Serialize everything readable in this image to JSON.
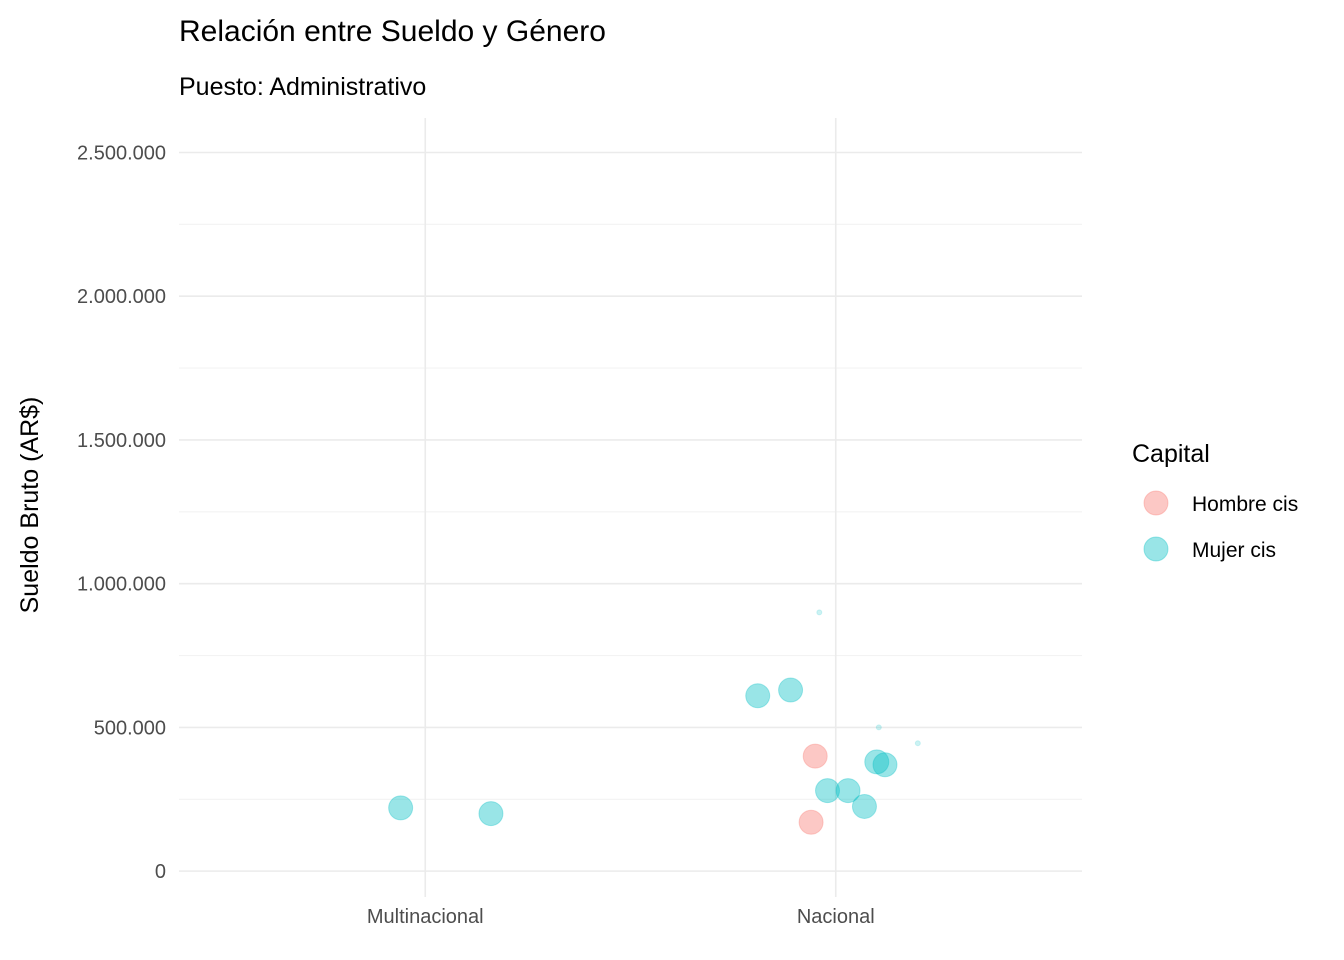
{
  "chart_data": {
    "type": "scatter",
    "title": "Relación entre Sueldo y Género",
    "subtitle": "Puesto: Administrativo",
    "xlabel": "",
    "ylabel": "Sueldo Bruto (AR$)",
    "categories": [
      "Multinacional",
      "Nacional"
    ],
    "ylim": [
      -90000,
      2620000
    ],
    "y_ticks": [
      0,
      500000,
      1000000,
      1500000,
      2000000,
      2500000
    ],
    "y_tick_labels": [
      "0",
      "500.000",
      "1.000.000",
      "1.500.000",
      "2.000.000",
      "2.500.000"
    ],
    "grid": true,
    "legend": {
      "title": "Capital",
      "position": "right",
      "entries": [
        {
          "label": "Hombre cis",
          "color": "#F8766D"
        },
        {
          "label": "Mujer cis",
          "color": "#00BFC4"
        }
      ]
    },
    "series": [
      {
        "name": "Hombre cis",
        "color": "#F8766D",
        "points": [
          {
            "category": "Nacional",
            "jitter": -0.05,
            "y": 400000,
            "size": "large"
          },
          {
            "category": "Nacional",
            "jitter": -0.06,
            "y": 170000,
            "size": "large"
          }
        ]
      },
      {
        "name": "Mujer cis",
        "color": "#00BFC4",
        "points": [
          {
            "category": "Multinacional",
            "jitter": -0.06,
            "y": 220000,
            "size": "large"
          },
          {
            "category": "Multinacional",
            "jitter": 0.16,
            "y": 200000,
            "size": "large"
          },
          {
            "category": "Nacional",
            "jitter": -0.19,
            "y": 610000,
            "size": "large"
          },
          {
            "category": "Nacional",
            "jitter": -0.11,
            "y": 630000,
            "size": "large"
          },
          {
            "category": "Nacional",
            "jitter": -0.02,
            "y": 280000,
            "size": "large"
          },
          {
            "category": "Nacional",
            "jitter": 0.03,
            "y": 280000,
            "size": "large"
          },
          {
            "category": "Nacional",
            "jitter": 0.07,
            "y": 225000,
            "size": "large"
          },
          {
            "category": "Nacional",
            "jitter": 0.1,
            "y": 380000,
            "size": "large"
          },
          {
            "category": "Nacional",
            "jitter": 0.12,
            "y": 370000,
            "size": "large"
          },
          {
            "category": "Nacional",
            "jitter": -0.04,
            "y": 900000,
            "size": "small"
          },
          {
            "category": "Nacional",
            "jitter": 0.105,
            "y": 500000,
            "size": "small"
          },
          {
            "category": "Nacional",
            "jitter": 0.2,
            "y": 445000,
            "size": "small"
          }
        ]
      }
    ]
  }
}
